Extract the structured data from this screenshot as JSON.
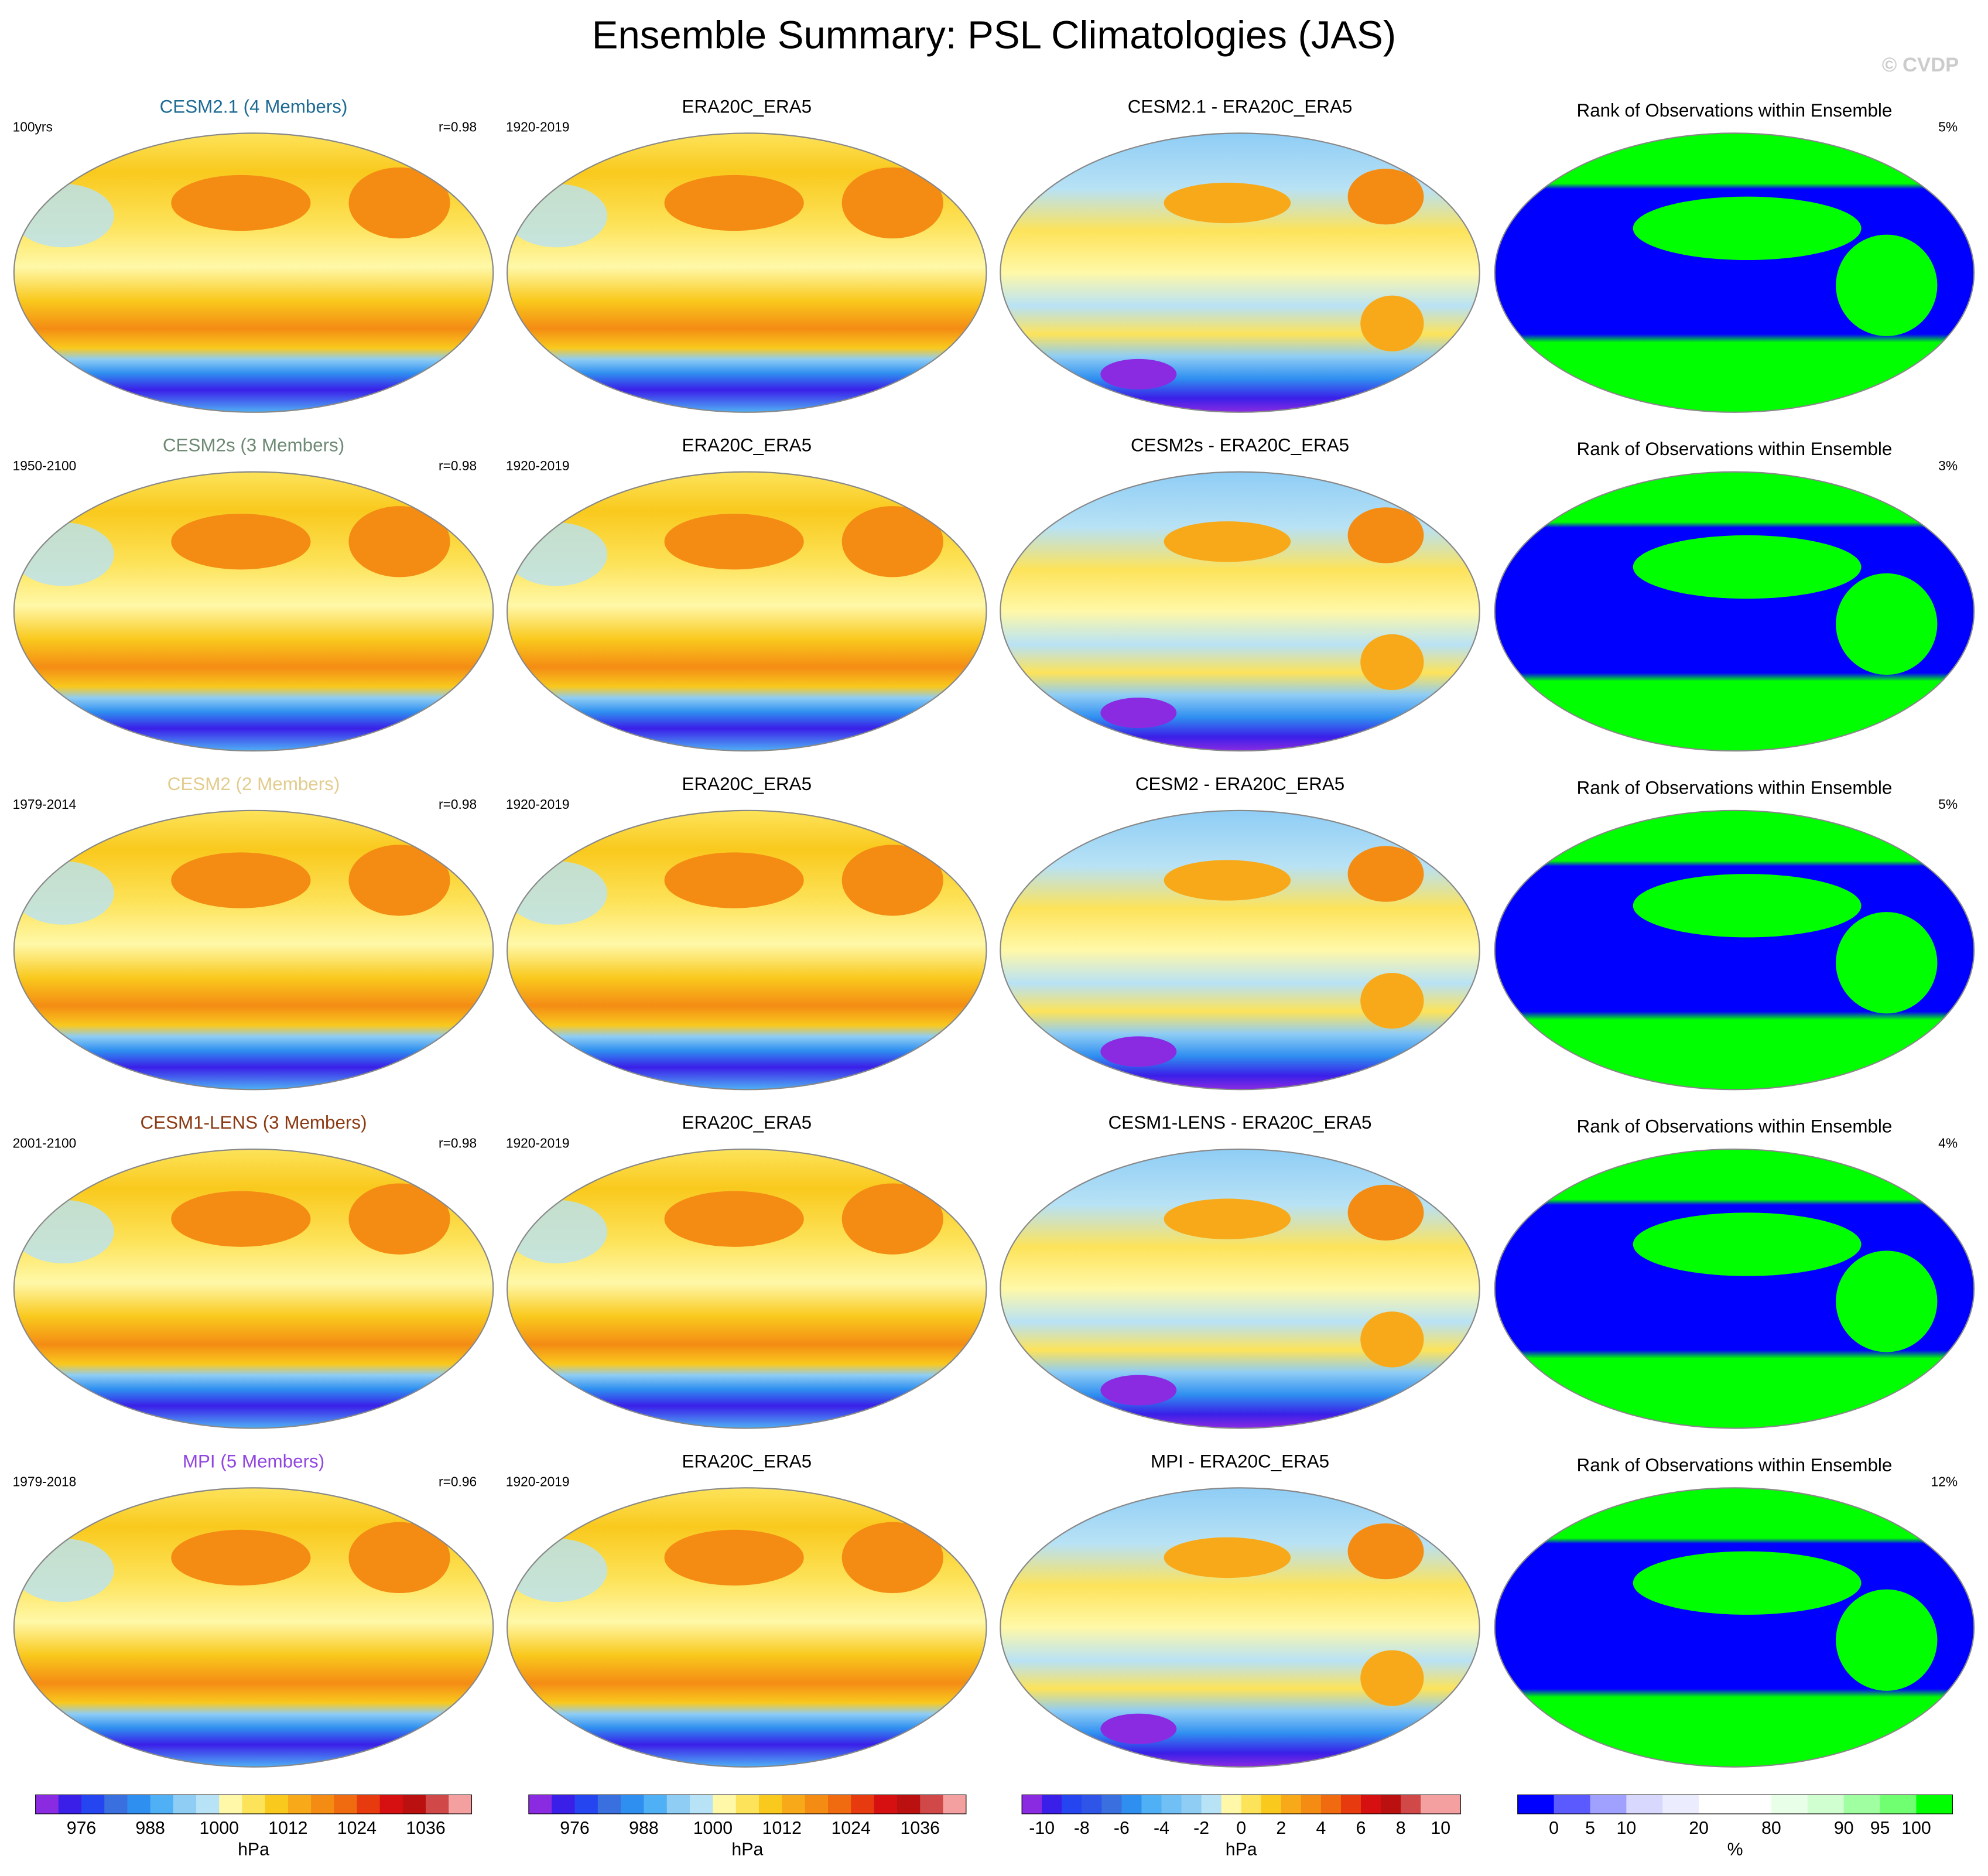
{
  "title": "Ensemble Summary: PSL Climatologies (JAS)",
  "watermark": "© CVDP",
  "rows": [
    {
      "panels": [
        {
          "kind": "psl",
          "title": "CESM2.1 (4 Members)",
          "title_color": "#1d6a94",
          "left": "100yrs",
          "right": "r=0.98"
        },
        {
          "kind": "psl",
          "title": "ERA20C_ERA5",
          "left": "1920-2019"
        },
        {
          "kind": "diff",
          "title": "CESM2.1 - ERA20C_ERA5"
        },
        {
          "kind": "rank",
          "title": "Rank of Observations within Ensemble",
          "right": "5%"
        }
      ]
    },
    {
      "panels": [
        {
          "kind": "psl",
          "title": "CESM2s (3 Members)",
          "title_color": "#6e8a74",
          "left": "1950-2100",
          "right": "r=0.98"
        },
        {
          "kind": "psl",
          "title": "ERA20C_ERA5",
          "left": "1920-2019"
        },
        {
          "kind": "diff",
          "title": "CESM2s - ERA20C_ERA5"
        },
        {
          "kind": "rank",
          "title": "Rank of Observations within Ensemble",
          "right": "3%"
        }
      ]
    },
    {
      "panels": [
        {
          "kind": "psl",
          "title": "CESM2 (2 Members)",
          "title_color": "#e2cc8e",
          "left": "1979-2014",
          "right": "r=0.98"
        },
        {
          "kind": "psl",
          "title": "ERA20C_ERA5",
          "left": "1920-2019"
        },
        {
          "kind": "diff",
          "title": "CESM2 - ERA20C_ERA5"
        },
        {
          "kind": "rank",
          "title": "Rank of Observations within Ensemble",
          "right": "5%"
        }
      ]
    },
    {
      "panels": [
        {
          "kind": "psl",
          "title": "CESM1-LENS (3 Members)",
          "title_color": "#8b3a12",
          "left": "2001-2100",
          "right": "r=0.98"
        },
        {
          "kind": "psl",
          "title": "ERA20C_ERA5",
          "left": "1920-2019"
        },
        {
          "kind": "diff",
          "title": "CESM1-LENS - ERA20C_ERA5"
        },
        {
          "kind": "rank",
          "title": "Rank of Observations within Ensemble",
          "right": "4%"
        }
      ]
    },
    {
      "panels": [
        {
          "kind": "psl",
          "title": "MPI (5 Members)",
          "title_color": "#9146e0",
          "left": "1979-2018",
          "right": "r=0.96"
        },
        {
          "kind": "psl",
          "title": "ERA20C_ERA5",
          "left": "1920-2019"
        },
        {
          "kind": "diff",
          "title": "MPI - ERA20C_ERA5"
        },
        {
          "kind": "rank",
          "title": "Rank of Observations within Ensemble",
          "right": "12%"
        }
      ]
    }
  ],
  "colorbars": [
    {
      "unit": "hPa",
      "ticks": [
        976,
        988,
        1000,
        1012,
        1024,
        1036
      ],
      "colors": [
        "#8a2be2",
        "#3a1fe8",
        "#2545f0",
        "#3a6fe0",
        "#2f8ff0",
        "#4fb0f5",
        "#8fcdf5",
        "#b8e2f5",
        "#fff8a8",
        "#fde35a",
        "#f9c91d",
        "#f7a91a",
        "#f48c14",
        "#f06a0f",
        "#e83a0f",
        "#d61010",
        "#bb1010",
        "#d04848",
        "#f5a0a0"
      ]
    },
    {
      "unit": "hPa",
      "ticks": [
        976,
        988,
        1000,
        1012,
        1024,
        1036
      ],
      "colors": [
        "#8a2be2",
        "#3a1fe8",
        "#2545f0",
        "#3a6fe0",
        "#2f8ff0",
        "#4fb0f5",
        "#8fcdf5",
        "#b8e2f5",
        "#fff8a8",
        "#fde35a",
        "#f9c91d",
        "#f7a91a",
        "#f48c14",
        "#f06a0f",
        "#e83a0f",
        "#d61010",
        "#bb1010",
        "#d04848",
        "#f5a0a0"
      ]
    },
    {
      "unit": "hPa",
      "ticks": [
        -10,
        -8,
        -6,
        -4,
        -2,
        0,
        2,
        4,
        6,
        8,
        10
      ],
      "colors": [
        "#8a2be2",
        "#3a1fe8",
        "#2545f0",
        "#2e55e8",
        "#3a6fe0",
        "#2f8ff0",
        "#4fb0f5",
        "#70c0f5",
        "#8fcdf5",
        "#b8e2f5",
        "#fff8a8",
        "#fde35a",
        "#f9c91d",
        "#f7a91a",
        "#f48c14",
        "#f06a0f",
        "#e83a0f",
        "#d61010",
        "#bb1010",
        "#d04848",
        "#f5a0a0",
        "#f5a0a0"
      ]
    },
    {
      "unit": "%",
      "ticks": [
        0,
        5,
        10,
        20,
        80,
        90,
        95,
        100
      ],
      "colors": [
        "#0000ff",
        "#5a5aff",
        "#a0a0ff",
        "#d8d8ff",
        "#ececff",
        "#ffffff",
        "#ffffff",
        "#e8ffe8",
        "#d0ffd0",
        "#a0ffa0",
        "#70ff70",
        "#00ff00"
      ]
    }
  ]
}
